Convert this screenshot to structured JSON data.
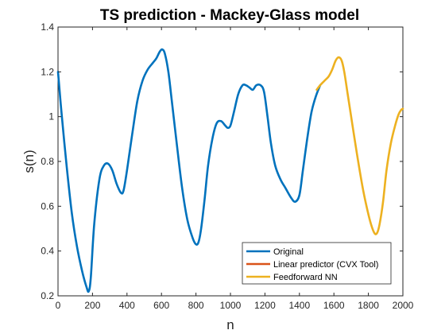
{
  "chart_data": {
    "type": "line",
    "title": "TS prediction - Mackey-Glass model",
    "xlabel": "n",
    "ylabel": "s(n)",
    "xlim": [
      0,
      2000
    ],
    "ylim": [
      0.2,
      1.4
    ],
    "xticks": [
      0,
      200,
      400,
      600,
      800,
      1000,
      1200,
      1400,
      1600,
      1800,
      2000
    ],
    "yticks": [
      0.2,
      0.4,
      0.6,
      0.8,
      1,
      1.2,
      1.4
    ],
    "xtick_labels": [
      "0",
      "200",
      "400",
      "600",
      "800",
      "1000",
      "1200",
      "1400",
      "1600",
      "1800",
      "2000"
    ],
    "ytick_labels": [
      "0.2",
      "0.4",
      "0.6",
      "0.8",
      "1",
      "1.2",
      "1.4"
    ],
    "grid": false,
    "legend_position": "bottom-right",
    "series": [
      {
        "name": "Original",
        "color": "#0072BD",
        "x": [
          0,
          20,
          50,
          80,
          110,
          140,
          165,
          178,
          190,
          210,
          240,
          265,
          290,
          315,
          340,
          365,
          380,
          400,
          430,
          460,
          490,
          520,
          550,
          570,
          590,
          605,
          620,
          640,
          660,
          690,
          720,
          750,
          780,
          800,
          815,
          830,
          850,
          870,
          895,
          920,
          945,
          970,
          985,
          1000,
          1020,
          1045,
          1070,
          1090,
          1110,
          1130,
          1150,
          1175,
          1195,
          1215,
          1235,
          1260,
          1290,
          1320,
          1350,
          1375,
          1400,
          1420,
          1445,
          1470,
          1495,
          1520
        ],
        "y": [
          1.2,
          1.02,
          0.78,
          0.57,
          0.42,
          0.31,
          0.24,
          0.22,
          0.28,
          0.52,
          0.72,
          0.78,
          0.79,
          0.76,
          0.7,
          0.66,
          0.67,
          0.76,
          0.92,
          1.07,
          1.16,
          1.21,
          1.24,
          1.26,
          1.29,
          1.3,
          1.28,
          1.2,
          1.07,
          0.87,
          0.68,
          0.54,
          0.46,
          0.43,
          0.44,
          0.5,
          0.63,
          0.78,
          0.9,
          0.97,
          0.98,
          0.96,
          0.95,
          0.96,
          1.02,
          1.1,
          1.14,
          1.14,
          1.13,
          1.12,
          1.14,
          1.14,
          1.11,
          1.0,
          0.88,
          0.78,
          0.72,
          0.68,
          0.64,
          0.62,
          0.65,
          0.76,
          0.9,
          1.02,
          1.09,
          1.14
        ]
      },
      {
        "name": "Linear predictor (CVX Tool)",
        "color": "#D95319",
        "x": [],
        "y": []
      },
      {
        "name": "Feedforward NN",
        "color": "#EDB120",
        "x": [
          1500,
          1520,
          1545,
          1570,
          1590,
          1610,
          1628,
          1645,
          1660,
          1680,
          1700,
          1720,
          1745,
          1770,
          1795,
          1815,
          1835,
          1850,
          1865,
          1885,
          1905,
          1930,
          1955,
          1975,
          1990,
          2000
        ],
        "y": [
          1.12,
          1.14,
          1.16,
          1.18,
          1.21,
          1.25,
          1.265,
          1.25,
          1.2,
          1.1,
          1.0,
          0.9,
          0.78,
          0.67,
          0.58,
          0.52,
          0.48,
          0.48,
          0.52,
          0.62,
          0.76,
          0.88,
          0.96,
          1.01,
          1.03,
          1.035
        ]
      }
    ]
  }
}
